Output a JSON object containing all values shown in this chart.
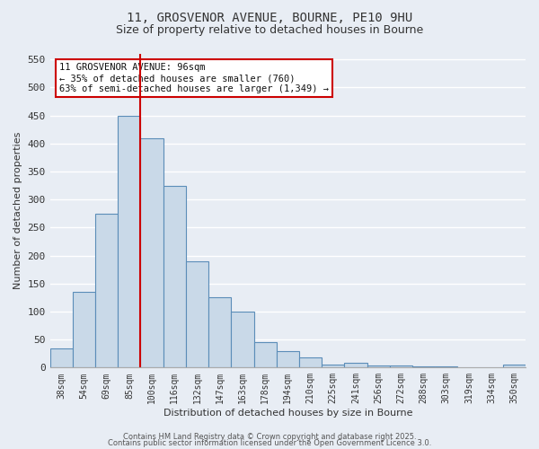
{
  "title_line1": "11, GROSVENOR AVENUE, BOURNE, PE10 9HU",
  "title_line2": "Size of property relative to detached houses in Bourne",
  "xlabel": "Distribution of detached houses by size in Bourne",
  "ylabel": "Number of detached properties",
  "bar_labels": [
    "38sqm",
    "54sqm",
    "69sqm",
    "85sqm",
    "100sqm",
    "116sqm",
    "132sqm",
    "147sqm",
    "163sqm",
    "178sqm",
    "194sqm",
    "210sqm",
    "225sqm",
    "241sqm",
    "256sqm",
    "272sqm",
    "288sqm",
    "303sqm",
    "319sqm",
    "334sqm",
    "350sqm"
  ],
  "bar_values": [
    35,
    135,
    275,
    450,
    410,
    325,
    190,
    125,
    100,
    45,
    30,
    18,
    6,
    8,
    4,
    4,
    2,
    2,
    0,
    0,
    5
  ],
  "bar_color": "#c9d9e8",
  "bar_edge_color": "#5b8db8",
  "bg_color": "#e8edf4",
  "grid_color": "#ffffff",
  "vline_x_index": 4,
  "vline_color": "#cc0000",
  "annotation_text": "11 GROSVENOR AVENUE: 96sqm\n← 35% of detached houses are smaller (760)\n63% of semi-detached houses are larger (1,349) →",
  "annotation_box_color": "#cc0000",
  "footer_line1": "Contains HM Land Registry data © Crown copyright and database right 2025.",
  "footer_line2": "Contains public sector information licensed under the Open Government Licence 3.0.",
  "ylim": [
    0,
    560
  ],
  "yticks": [
    0,
    50,
    100,
    150,
    200,
    250,
    300,
    350,
    400,
    450,
    500,
    550
  ]
}
